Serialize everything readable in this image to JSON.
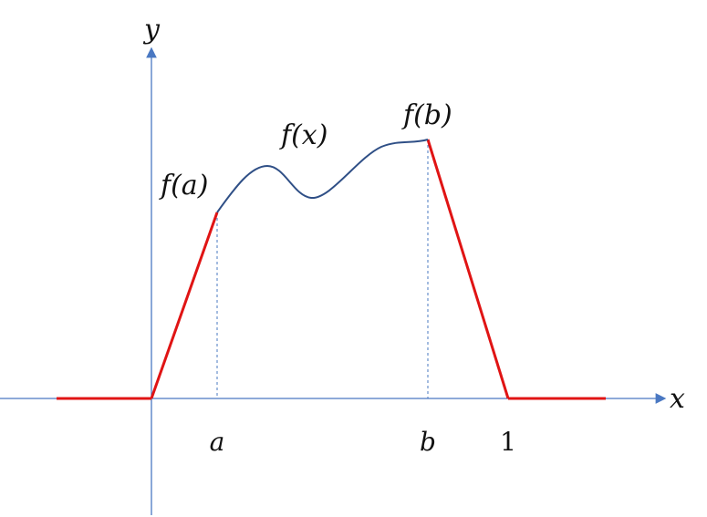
{
  "colors": {
    "axis": "#4a78c2",
    "curve": "#2f4f86",
    "piecewise": "#e01414",
    "guide": "#4a78c2",
    "text": "#111111"
  },
  "labels": {
    "y_axis": "y",
    "x_axis": "x",
    "a": "a",
    "b": "b",
    "one": "1",
    "f_a": "f(a)",
    "f_x": "f(x)",
    "f_b": "f(b)"
  }
}
